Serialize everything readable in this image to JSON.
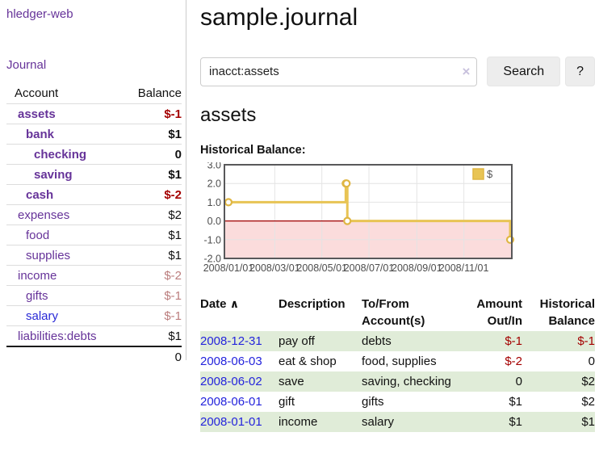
{
  "app": {
    "brand": "hledger-web"
  },
  "sidebar": {
    "nav": [
      {
        "label": "Journal"
      }
    ],
    "accounts_table": {
      "headers": {
        "account": "Account",
        "balance": "Balance"
      },
      "rows": [
        {
          "name": "assets",
          "indent": 1,
          "bold": true,
          "balance": "$-1",
          "balance_style": "neg-strong"
        },
        {
          "name": "bank",
          "indent": 2,
          "bold": true,
          "balance": "$1",
          "balance_style": "pos"
        },
        {
          "name": "checking",
          "indent": 3,
          "bold": true,
          "balance": "0",
          "balance_style": "pos"
        },
        {
          "name": "saving",
          "indent": 3,
          "bold": true,
          "balance": "$1",
          "balance_style": "pos"
        },
        {
          "name": "cash",
          "indent": 2,
          "bold": true,
          "balance": "$-2",
          "balance_style": "neg-strong"
        },
        {
          "name": "expenses",
          "indent": 1,
          "bold": false,
          "balance": "$2",
          "balance_style": "pos"
        },
        {
          "name": "food",
          "indent": 2,
          "bold": false,
          "balance": "$1",
          "balance_style": "pos"
        },
        {
          "name": "supplies",
          "indent": 2,
          "bold": false,
          "balance": "$1",
          "balance_style": "pos"
        },
        {
          "name": "income",
          "indent": 1,
          "bold": false,
          "balance": "$-2",
          "balance_style": "neg-weak"
        },
        {
          "name": "gifts",
          "indent": 2,
          "bold": false,
          "balance": "$-1",
          "balance_style": "neg-weak"
        },
        {
          "name": "salary",
          "indent": 2,
          "bold": false,
          "link_style": "visited",
          "balance": "$-1",
          "balance_style": "neg-weak"
        },
        {
          "name": "liabilities:debts",
          "indent": 1,
          "bold": false,
          "balance": "$1",
          "balance_style": "pos"
        }
      ],
      "total": "0"
    }
  },
  "header": {
    "title": "sample.journal"
  },
  "search": {
    "value": "inacct:assets",
    "clear_label": "×",
    "button": "Search",
    "help_button": "?"
  },
  "account_page": {
    "heading": "assets",
    "chart_label": "Historical Balance:"
  },
  "chart_data": {
    "type": "line",
    "title": "Historical Balance:",
    "legend": [
      {
        "label": "$"
      }
    ],
    "legend_position": "top-right",
    "grid": true,
    "x_range": [
      "2008/01/01",
      "2008/12/31"
    ],
    "x_ticks": [
      "2008/01/01",
      "2008/03/01",
      "2008/05/01",
      "2008/07/01",
      "2008/09/01",
      "2008/11/01"
    ],
    "ylim": [
      -2,
      3
    ],
    "y_ticks": [
      3,
      2,
      1,
      0,
      -1,
      -2
    ],
    "y_tick_labels": [
      "3.0",
      "2.0",
      "1.0",
      "0.0",
      "-1.0",
      "-2.0"
    ],
    "series": [
      {
        "name": "$",
        "step": true,
        "points": [
          [
            "2008/01/01",
            1
          ],
          [
            "2008/06/01",
            2
          ],
          [
            "2008/06/02",
            2
          ],
          [
            "2008/06/03",
            0
          ],
          [
            "2008/12/31",
            -1
          ]
        ]
      }
    ],
    "negative_region_shaded": true
  },
  "register": {
    "sort_indicator": "∧",
    "headers": [
      "Date",
      "Description",
      "To/From Account(s)",
      "Amount Out/In",
      "Historical Balance"
    ],
    "rows": [
      {
        "date": "2008-12-31",
        "description": "pay off",
        "accounts": "debts",
        "amount": "$-1",
        "amount_neg": true,
        "balance": "$-1",
        "balance_neg": true,
        "shaded": true
      },
      {
        "date": "2008-06-03",
        "description": "eat & shop",
        "accounts": "food, supplies",
        "amount": "$-2",
        "amount_neg": true,
        "balance": "0",
        "balance_neg": false,
        "shaded": false
      },
      {
        "date": "2008-06-02",
        "description": "save",
        "accounts": "saving, checking",
        "amount": "0",
        "amount_neg": false,
        "balance": "$2",
        "balance_neg": false,
        "shaded": true
      },
      {
        "date": "2008-06-01",
        "description": "gift",
        "accounts": "gifts",
        "amount": "$1",
        "amount_neg": false,
        "balance": "$2",
        "balance_neg": false,
        "shaded": false
      },
      {
        "date": "2008-01-01",
        "description": "income",
        "accounts": "salary",
        "amount": "$1",
        "amount_neg": false,
        "balance": "$1",
        "balance_neg": false,
        "shaded": true
      }
    ]
  },
  "colors": {
    "accent_purple": "#663399",
    "link_blue": "#2424dc",
    "visited_link_blue": "#2929d6",
    "neg_strong": "#a40000",
    "neg_weak": "#bb7d7d",
    "row_stripe_green": "#e0ecd8",
    "chart_line_gold": "#e8c454",
    "chart_marker_ring": "#dfb643",
    "chart_negative_bg": "#fbdcdc",
    "chart_zero_line": "#a00000",
    "chart_border": "#58585a",
    "chart_grid": "#e4e4e4",
    "chart_tick_text": "#4d4d4d"
  }
}
